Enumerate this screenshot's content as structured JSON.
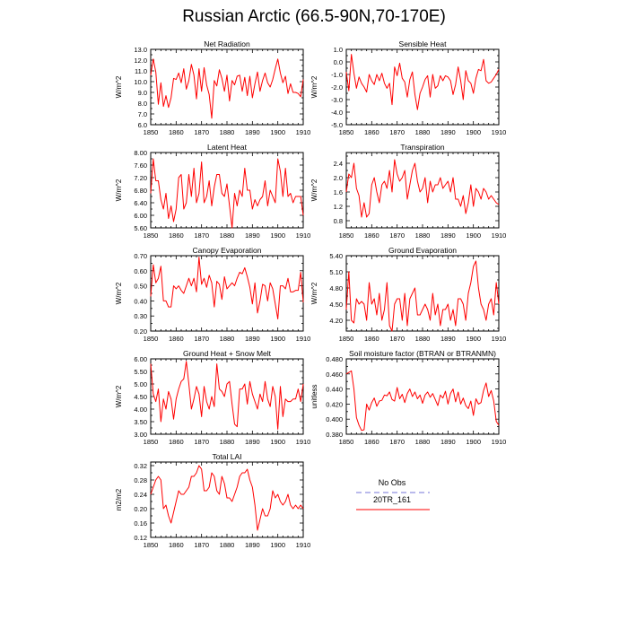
{
  "title": "Russian Arctic (66.5-90N,70-170E)",
  "colors": {
    "model": "#ff0000",
    "obs": "#9090e0",
    "axis": "#000000"
  },
  "legend": {
    "obs_label": "No Obs",
    "model_label": "20TR_161"
  },
  "chart_data": [
    {
      "type": "line",
      "title": "Net Radiation",
      "xlabel": "",
      "ylabel": "W/m^2",
      "xlim": [
        1850,
        1910
      ],
      "ylim": [
        6.0,
        13.0
      ],
      "yticks": [
        "6.0",
        "7.0",
        "8.0",
        "9.0",
        "10.0",
        "11.0",
        "12.0",
        "13.0"
      ],
      "xticks": [
        "1850",
        "1860",
        "1870",
        "1880",
        "1890",
        "1900",
        "1910"
      ],
      "series": [
        {
          "name": "20TR_161",
          "x_start": 1850,
          "values": [
            10.6,
            12.1,
            10.9,
            7.9,
            9.9,
            7.7,
            8.7,
            7.6,
            8.5,
            10.3,
            10.2,
            10.8,
            9.9,
            11.2,
            9.3,
            10.1,
            11.6,
            10.6,
            8.4,
            11.2,
            9.1,
            11.3,
            9.7,
            8.8,
            6.6,
            10.1,
            9.6,
            11.1,
            10.3,
            9.1,
            10.6,
            8.2,
            10.1,
            9.7,
            10.5,
            10.6,
            9.1,
            10.4,
            8.7,
            10.5,
            8.5,
            9.8,
            10.9,
            9.1,
            10.1,
            10.8,
            9.9,
            9.5,
            10.2,
            11.2,
            12.1,
            10.8,
            9.9,
            10.5,
            8.9,
            9.8,
            9.0,
            9.0,
            8.9,
            8.6,
            10.2
          ]
        }
      ]
    },
    {
      "type": "line",
      "title": "Sensible Heat",
      "xlabel": "",
      "ylabel": "W/m^2",
      "xlim": [
        1850,
        1910
      ],
      "ylim": [
        -5.0,
        1.0
      ],
      "yticks": [
        "-5.0",
        "-4.0",
        "-3.0",
        "-2.0",
        "-1.0",
        "0.0",
        "1.0"
      ],
      "xticks": [
        "1850",
        "1860",
        "1870",
        "1880",
        "1890",
        "1900",
        "1910"
      ],
      "series": [
        {
          "name": "20TR_161",
          "x_start": 1850,
          "values": [
            -0.8,
            -2.3,
            0.6,
            -0.9,
            -2.1,
            -1.2,
            -1.7,
            -2.0,
            -2.4,
            -1.0,
            -1.5,
            -1.8,
            -1.0,
            -1.5,
            -0.9,
            -1.7,
            -2.1,
            -1.7,
            -3.4,
            -0.4,
            -1.1,
            -0.1,
            -1.3,
            -1.6,
            -2.8,
            -1.4,
            -0.8,
            -2.6,
            -3.8,
            -2.5,
            -2.0,
            -1.4,
            -1.1,
            -2.8,
            -1.0,
            -2.1,
            -1.9,
            -1.1,
            -1.5,
            -1.1,
            -1.2,
            -1.5,
            -2.6,
            -1.8,
            -0.4,
            -1.5,
            -3.0,
            -0.7,
            -1.5,
            -1.7,
            -2.5,
            -1.3,
            -0.6,
            -0.7,
            0.2,
            -1.5,
            -1.7,
            -1.6,
            -1.3,
            -1.0,
            -0.6
          ]
        }
      ]
    },
    {
      "type": "line",
      "title": "Latent Heat",
      "xlabel": "",
      "ylabel": "W/m^2",
      "xlim": [
        1850,
        1910
      ],
      "ylim": [
        5.6,
        8.0
      ],
      "yticks": [
        "5.60",
        "6.00",
        "6.40",
        "6.80",
        "7.20",
        "7.60",
        "8.00"
      ],
      "xticks": [
        "1850",
        "1860",
        "1870",
        "1880",
        "1890",
        "1900",
        "1910"
      ],
      "series": [
        {
          "name": "20TR_161",
          "x_start": 1850,
          "values": [
            6.7,
            7.8,
            7.1,
            7.1,
            6.5,
            6.2,
            6.7,
            5.9,
            6.3,
            5.8,
            6.2,
            7.2,
            7.3,
            6.2,
            6.4,
            7.3,
            6.6,
            7.5,
            6.4,
            6.7,
            7.7,
            6.4,
            6.6,
            7.1,
            6.3,
            6.9,
            7.3,
            7.3,
            6.7,
            6.6,
            7.0,
            6.3,
            5.6,
            6.7,
            6.3,
            6.8,
            6.6,
            7.5,
            6.8,
            6.8,
            6.2,
            6.5,
            6.3,
            6.5,
            6.6,
            7.1,
            6.3,
            6.8,
            6.6,
            6.4,
            7.8,
            7.4,
            6.6,
            7.5,
            6.6,
            6.7,
            6.4,
            6.6,
            6.6,
            6.6,
            6.0
          ]
        }
      ]
    },
    {
      "type": "line",
      "title": "Transpiration",
      "xlabel": "",
      "ylabel": "W/m^2",
      "xlim": [
        1850,
        1910
      ],
      "ylim": [
        0.6,
        2.7
      ],
      "yticks": [
        "0.8",
        "1.2",
        "1.6",
        "2.0",
        "2.4"
      ],
      "xticks": [
        "1850",
        "1860",
        "1870",
        "1880",
        "1890",
        "1900",
        "1910"
      ],
      "series": [
        {
          "name": "20TR_161",
          "x_start": 1850,
          "values": [
            1.6,
            2.1,
            2.0,
            2.4,
            1.7,
            1.5,
            0.9,
            1.3,
            0.9,
            1.0,
            1.8,
            2.0,
            1.6,
            1.3,
            1.8,
            1.9,
            1.7,
            2.2,
            1.6,
            2.5,
            2.1,
            1.9,
            2.0,
            2.2,
            1.4,
            1.8,
            2.2,
            2.4,
            1.9,
            1.6,
            1.7,
            2.0,
            1.3,
            1.9,
            1.6,
            1.8,
            1.8,
            2.0,
            1.7,
            1.8,
            1.9,
            1.6,
            2.0,
            1.4,
            1.4,
            1.2,
            1.5,
            1.0,
            1.3,
            1.8,
            1.2,
            1.7,
            1.6,
            1.4,
            1.7,
            1.6,
            1.4,
            1.5,
            1.4,
            1.3,
            1.25
          ]
        }
      ]
    },
    {
      "type": "line",
      "title": "Canopy Evaporation",
      "xlabel": "",
      "ylabel": "W/m^2",
      "xlim": [
        1850,
        1910
      ],
      "ylim": [
        0.2,
        0.7
      ],
      "yticks": [
        "0.20",
        "0.30",
        "0.40",
        "0.50",
        "0.60",
        "0.70"
      ],
      "xticks": [
        "1850",
        "1860",
        "1870",
        "1880",
        "1890",
        "1900",
        "1910"
      ],
      "series": [
        {
          "name": "20TR_161",
          "x_start": 1850,
          "values": [
            0.43,
            0.64,
            0.52,
            0.55,
            0.63,
            0.4,
            0.4,
            0.36,
            0.36,
            0.5,
            0.48,
            0.5,
            0.47,
            0.45,
            0.5,
            0.55,
            0.5,
            0.55,
            0.46,
            0.69,
            0.51,
            0.55,
            0.49,
            0.57,
            0.52,
            0.36,
            0.53,
            0.51,
            0.41,
            0.56,
            0.48,
            0.5,
            0.52,
            0.5,
            0.55,
            0.59,
            0.58,
            0.62,
            0.56,
            0.49,
            0.38,
            0.52,
            0.32,
            0.4,
            0.51,
            0.5,
            0.4,
            0.52,
            0.48,
            0.38,
            0.28,
            0.5,
            0.5,
            0.48,
            0.55,
            0.46,
            0.46,
            0.47,
            0.47,
            0.59,
            0.39
          ]
        }
      ]
    },
    {
      "type": "line",
      "title": "Ground Evaporation",
      "xlabel": "",
      "ylabel": "W/m^2",
      "xlim": [
        1850,
        1910
      ],
      "ylim": [
        4.0,
        5.4
      ],
      "yticks": [
        "4.20",
        "4.50",
        "4.80",
        "5.10",
        "5.40"
      ],
      "xticks": [
        "1850",
        "1860",
        "1870",
        "1880",
        "1890",
        "1900",
        "1910"
      ],
      "series": [
        {
          "name": "20TR_161",
          "x_start": 1850,
          "values": [
            4.4,
            5.1,
            4.2,
            4.15,
            4.6,
            4.5,
            4.55,
            4.5,
            4.2,
            4.9,
            4.5,
            4.6,
            4.3,
            4.7,
            4.2,
            4.4,
            4.9,
            4.1,
            4.0,
            4.5,
            4.6,
            4.6,
            4.2,
            4.7,
            4.1,
            4.6,
            4.7,
            4.8,
            4.3,
            4.3,
            4.4,
            4.5,
            4.4,
            4.2,
            4.7,
            4.3,
            4.5,
            4.1,
            4.4,
            4.4,
            4.5,
            4.2,
            4.4,
            4.1,
            4.6,
            4.6,
            4.5,
            4.2,
            4.7,
            4.9,
            5.2,
            5.3,
            4.8,
            4.5,
            4.4,
            4.2,
            4.5,
            4.6,
            4.3,
            4.9,
            4.5
          ]
        }
      ]
    },
    {
      "type": "line",
      "title": "Ground Heat + Snow Melt",
      "xlabel": "",
      "ylabel": "W/m^2",
      "xlim": [
        1850,
        1910
      ],
      "ylim": [
        3.0,
        6.0
      ],
      "yticks": [
        "3.00",
        "3.50",
        "4.00",
        "4.50",
        "5.00",
        "5.50",
        "6.00"
      ],
      "xticks": [
        "1850",
        "1860",
        "1870",
        "1880",
        "1890",
        "1900",
        "1910"
      ],
      "series": [
        {
          "name": "20TR_161",
          "x_start": 1850,
          "values": [
            5.8,
            4.6,
            4.3,
            4.8,
            3.5,
            4.4,
            4.0,
            4.7,
            4.4,
            3.6,
            4.4,
            4.8,
            5.1,
            5.2,
            5.9,
            5.0,
            4.0,
            4.4,
            4.9,
            4.6,
            3.7,
            4.9,
            4.3,
            4.0,
            4.5,
            4.1,
            5.8,
            4.8,
            4.7,
            4.5,
            5.0,
            5.1,
            4.2,
            3.4,
            3.3,
            4.8,
            4.8,
            5.0,
            4.2,
            5.1,
            4.6,
            4.3,
            4.0,
            4.6,
            4.3,
            5.1,
            4.4,
            4.1,
            4.9,
            4.5,
            3.2,
            4.9,
            3.7,
            4.4,
            4.3,
            4.3,
            4.4,
            4.4,
            4.8,
            4.3,
            5.0
          ]
        }
      ]
    },
    {
      "type": "line",
      "title": "Soil moisture factor (BTRAN or BTRANMN)",
      "xlabel": "",
      "ylabel": "unitless",
      "xlim": [
        1850,
        1910
      ],
      "ylim": [
        0.38,
        0.48
      ],
      "yticks": [
        "0.380",
        "0.400",
        "0.420",
        "0.440",
        "0.460",
        "0.480"
      ],
      "xticks": [
        "1850",
        "1860",
        "1870",
        "1880",
        "1890",
        "1900",
        "1910"
      ],
      "series": [
        {
          "name": "20TR_161",
          "x_start": 1850,
          "values": [
            0.46,
            0.462,
            0.464,
            0.44,
            0.402,
            0.392,
            0.385,
            0.386,
            0.42,
            0.412,
            0.422,
            0.428,
            0.417,
            0.424,
            0.425,
            0.432,
            0.431,
            0.436,
            0.426,
            0.424,
            0.442,
            0.427,
            0.433,
            0.422,
            0.434,
            0.44,
            0.43,
            0.436,
            0.427,
            0.432,
            0.421,
            0.432,
            0.436,
            0.429,
            0.434,
            0.426,
            0.418,
            0.432,
            0.428,
            0.437,
            0.42,
            0.434,
            0.44,
            0.423,
            0.436,
            0.42,
            0.428,
            0.418,
            0.414,
            0.424,
            0.405,
            0.427,
            0.42,
            0.422,
            0.438,
            0.448,
            0.43,
            0.438,
            0.424,
            0.397,
            0.392
          ]
        }
      ]
    },
    {
      "type": "line",
      "title": "Total LAI",
      "xlabel": "",
      "ylabel": "m2/m2",
      "xlim": [
        1850,
        1910
      ],
      "ylim": [
        0.12,
        0.33
      ],
      "yticks": [
        "0.12",
        "0.16",
        "0.20",
        "0.24",
        "0.28",
        "0.32"
      ],
      "xticks": [
        "1850",
        "1860",
        "1870",
        "1880",
        "1890",
        "1900",
        "1910"
      ],
      "series": [
        {
          "name": "20TR_161",
          "x_start": 1850,
          "values": [
            0.24,
            0.26,
            0.28,
            0.29,
            0.28,
            0.2,
            0.21,
            0.18,
            0.16,
            0.19,
            0.22,
            0.25,
            0.24,
            0.24,
            0.25,
            0.26,
            0.29,
            0.29,
            0.3,
            0.32,
            0.31,
            0.25,
            0.25,
            0.26,
            0.3,
            0.29,
            0.25,
            0.24,
            0.29,
            0.27,
            0.23,
            0.23,
            0.22,
            0.24,
            0.26,
            0.29,
            0.3,
            0.3,
            0.31,
            0.28,
            0.26,
            0.21,
            0.14,
            0.17,
            0.2,
            0.18,
            0.18,
            0.2,
            0.25,
            0.23,
            0.24,
            0.22,
            0.21,
            0.22,
            0.24,
            0.21,
            0.2,
            0.21,
            0.2,
            0.21,
            0.2
          ]
        }
      ]
    }
  ]
}
